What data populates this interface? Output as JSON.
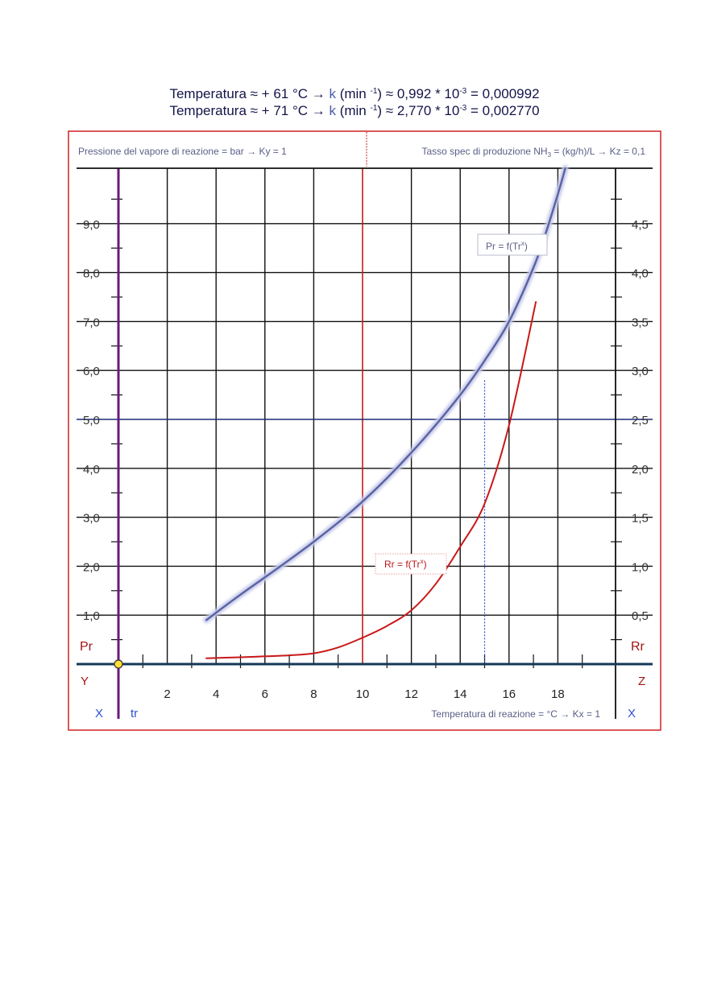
{
  "header": {
    "line1": {
      "prefix": "Temperatura  ≈ + 61 °C  →  ",
      "k": "k",
      "mid": " (min ",
      "exp1": "-1",
      "mid2": ") ≈ 0,992 * 10",
      "exp2": "-3",
      "tail": " = 0,000992"
    },
    "line2": {
      "prefix": "Temperatura  ≈ + 71 °C  →  ",
      "k": "k",
      "mid": " (min ",
      "exp1": "-1",
      "mid2": ") ≈ 2,770 * 10",
      "exp2": "-3",
      "tail": " = 0,002770"
    }
  },
  "panel": {
    "left_caption": "Pressione del vapore di reazione = bar → Ky = 1",
    "right_caption_pre": "Tasso spec di produzione NH",
    "right_caption_sub": "3",
    "right_caption_post": " = (kg/h)/L → Kz = 0,1",
    "bottom_caption": "Temperatura di reazione = °C → Kx = 1",
    "label_pr": "Pr",
    "label_rr": "Rr",
    "label_y": "Y",
    "label_z": "Z",
    "label_x_left": "X",
    "label_x_right": "X",
    "label_tr": "tr"
  },
  "chart_data": {
    "type": "line",
    "x_axis": {
      "label": "Temperatura di reazione = °C → Kx = 1",
      "range": [
        -1,
        21
      ],
      "ticks": [
        "2",
        "4",
        "6",
        "8",
        "10",
        "12",
        "14",
        "16",
        "18"
      ]
    },
    "y_left": {
      "name": "Pr",
      "label": "Pressione del vapore di reazione = bar → Ky = 1",
      "range": [
        0,
        10
      ],
      "ticks": [
        "1,0",
        "2,0",
        "3,0",
        "4,0",
        "5,0",
        "6,0",
        "7,0",
        "8,0",
        "9,0"
      ]
    },
    "y_right": {
      "name": "Rr",
      "label": "Tasso spec di produzione NH3 = (kg/h)/L → Kz = 0,1",
      "range": [
        0,
        5
      ],
      "ticks": [
        "0,5",
        "1,0",
        "1,5",
        "2,0",
        "2,5",
        "3,0",
        "3,5",
        "4,0",
        "4,5"
      ]
    },
    "series": [
      {
        "name": "Pr = f(Tr^x)",
        "label_main": "Pr = f(Tr",
        "label_sup": "x",
        "label_end": ")",
        "axis": "left",
        "color": "#5a62a2",
        "x": [
          3.6,
          5,
          6.5,
          8,
          9.5,
          11,
          12.5,
          14,
          15,
          16,
          17,
          17.5,
          18,
          18.4
        ],
        "y": [
          0.9,
          1.42,
          1.95,
          2.5,
          3.1,
          3.8,
          4.6,
          5.5,
          6.2,
          7.0,
          8.1,
          8.8,
          9.6,
          10.3
        ]
      },
      {
        "name": "Rr = f(Tr^x)",
        "label_main": "Rr = f(Tr",
        "label_sup": "x",
        "label_end": ")",
        "axis": "right",
        "color": "#c81818",
        "x": [
          3.6,
          5,
          6,
          7,
          8,
          9,
          10,
          11,
          12,
          13,
          14,
          15,
          16,
          17.1
        ],
        "y": [
          0.06,
          0.07,
          0.08,
          0.09,
          0.11,
          0.17,
          0.27,
          0.39,
          0.55,
          0.82,
          1.2,
          1.64,
          2.44,
          3.7
        ]
      }
    ],
    "reference_lines": [
      {
        "type": "vertical",
        "x": 10,
        "color": "#c81818"
      },
      {
        "type": "horizontal",
        "y_left": 5.0,
        "color": "#1c2a78"
      },
      {
        "type": "vertical_dotted",
        "x": 15,
        "y_left": 5.8,
        "color": "#3050d0"
      }
    ],
    "origin_marker": {
      "x": 0,
      "y": 0
    },
    "grid": true
  }
}
